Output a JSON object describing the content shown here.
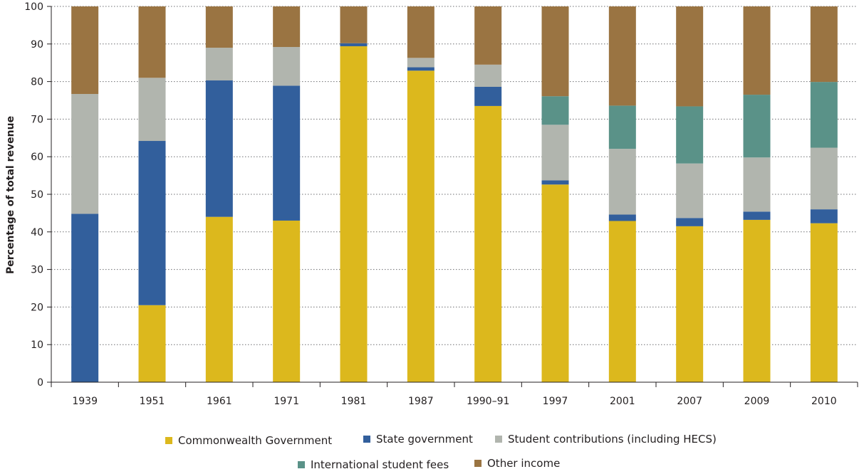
{
  "colors": {
    "commonwealth": "#dcb81d",
    "state": "#325f9c",
    "student": "#b1b5ae",
    "international": "#5a9288",
    "other": "#9a7442",
    "grid": "#6d6e71",
    "axis": "#231f20"
  },
  "chart_data": {
    "type": "bar",
    "stacked": true,
    "title": "",
    "xlabel": "",
    "ylabel": "Percentage of total revenue",
    "ylim": [
      0,
      100
    ],
    "yticks": [
      0,
      10,
      20,
      30,
      40,
      50,
      60,
      70,
      80,
      90,
      100
    ],
    "grid": true,
    "legend_position": "bottom",
    "categories": [
      "1939",
      "1951",
      "1961",
      "1971",
      "1981",
      "1987",
      "1990–91",
      "1997",
      "2001",
      "2007",
      "2009",
      "2010"
    ],
    "series": [
      {
        "key": "commonwealth",
        "name": "Commonwealth Government",
        "color": "#dcb81d",
        "values": [
          0,
          20.5,
          44,
          43,
          89.4,
          82.9,
          73.5,
          52.6,
          42.9,
          41.5,
          43.2,
          42.3
        ]
      },
      {
        "key": "state",
        "name": "State government",
        "color": "#325f9c",
        "values": [
          44.8,
          43.7,
          36.3,
          35.9,
          0.8,
          0.9,
          5.1,
          1.1,
          1.7,
          2.2,
          2.2,
          3.7
        ]
      },
      {
        "key": "student",
        "name": "Student contributions (including HECS)",
        "color": "#b1b5ae",
        "values": [
          31.9,
          16.8,
          8.7,
          10.3,
          0,
          2.5,
          5.9,
          14.8,
          17.5,
          14.5,
          14.4,
          16.4
        ]
      },
      {
        "key": "international",
        "name": "International student fees",
        "color": "#5a9288",
        "values": [
          0,
          0,
          0,
          0,
          0,
          0,
          0,
          7.6,
          11.5,
          15.2,
          16.7,
          17.5
        ]
      },
      {
        "key": "other",
        "name": "Other income",
        "color": "#9a7442",
        "values": [
          23.3,
          19,
          11,
          10.8,
          9.8,
          13.7,
          15.5,
          23.9,
          26.4,
          26.6,
          23.5,
          20.1
        ]
      }
    ]
  }
}
